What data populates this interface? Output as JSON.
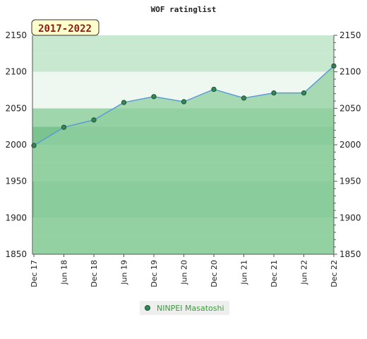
{
  "chart_data": {
    "type": "line",
    "title": "WOF ratinglist",
    "period_label": "2017-2022",
    "categories": [
      "Dec 17",
      "Jun 18",
      "Dec 18",
      "Jun 19",
      "Dec 19",
      "Jun 20",
      "Dec 20",
      "Jun 21",
      "Dec 21",
      "Jun 22",
      "Dec 22"
    ],
    "series": [
      {
        "name": "NINPEI Masatoshi",
        "values": [
          1999,
          2024,
          2034,
          2058,
          2066,
          2059,
          2076,
          2064,
          2071,
          2071,
          2108
        ],
        "color": "#2e8b57"
      }
    ],
    "yticks": [
      1850,
      1900,
      1950,
      2000,
      2050,
      2100,
      2150
    ],
    "ylim": [
      1850,
      2150
    ],
    "y_axis_sides": [
      "left",
      "right"
    ],
    "legend_position": "bottom-center",
    "grid": false
  },
  "colors": {
    "line": "#5b9bd5",
    "marker": "#2e8b57",
    "fill_below": "#8fcf9f",
    "band_low": "#7cc48f",
    "band_mid": "#9fd6ac",
    "band_high": "#c8e8d0",
    "band_top": "#eef8f0",
    "label_box": "#ffffcc"
  }
}
